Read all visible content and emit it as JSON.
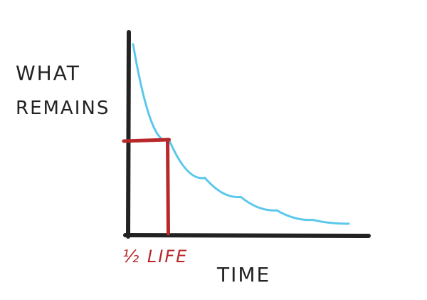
{
  "chart_data": {
    "type": "line",
    "title": "",
    "ylabel_lines": [
      "WHAT",
      "REMAINS"
    ],
    "xlabel": "TIME",
    "annotation": "½ LIFE",
    "grid": false,
    "legend": "none",
    "x": [
      0,
      1,
      2,
      3,
      4,
      5,
      6
    ],
    "series": [
      {
        "values": [
          1.0,
          0.5,
          0.3,
          0.2,
          0.13,
          0.08,
          0.06
        ],
        "color": "#5bc8ec"
      }
    ],
    "half_life_marker": {
      "x": 1,
      "y": 0.5,
      "color": "#b8282b"
    },
    "axis_color": "#222222"
  }
}
